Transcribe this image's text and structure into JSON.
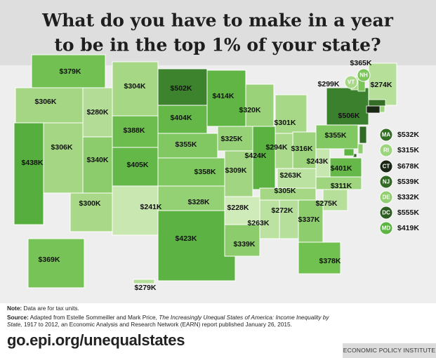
{
  "title_lines": [
    "What do you have to make in a year",
    "to be in the top 1% of your state?"
  ],
  "map": {
    "states": [
      {
        "label": "$379K",
        "value": 379
      },
      {
        "label": "$306K",
        "value": 306
      },
      {
        "label": "$280K",
        "value": 280
      },
      {
        "label": "$304K",
        "value": 304
      },
      {
        "label": "$502K",
        "value": 502
      },
      {
        "label": "$404K",
        "value": 404
      },
      {
        "label": "$388K",
        "value": 388
      },
      {
        "label": "$355K",
        "value": 355
      },
      {
        "label": "$340K",
        "value": 340
      },
      {
        "label": "$405K",
        "value": 405
      },
      {
        "label": "$358K",
        "value": 358
      },
      {
        "label": "$306K",
        "value": 306
      },
      {
        "label": "$438K",
        "value": 438
      },
      {
        "label": "$300K",
        "value": 300
      },
      {
        "label": "$241K",
        "value": 241
      },
      {
        "label": "$328K",
        "value": 328
      },
      {
        "label": "$423K",
        "value": 423
      },
      {
        "label": "$414K",
        "value": 414
      },
      {
        "label": "$325K",
        "value": 325
      },
      {
        "label": "$309K",
        "value": 309
      },
      {
        "label": "$228K",
        "value": 228
      },
      {
        "label": "$339K",
        "value": 339
      },
      {
        "label": "$320K",
        "value": 320
      },
      {
        "label": "$424K",
        "value": 424
      },
      {
        "label": "$301K",
        "value": 301
      },
      {
        "label": "$294K",
        "value": 294
      },
      {
        "label": "$316K",
        "value": 316
      },
      {
        "label": "$263K",
        "value": 263
      },
      {
        "label": "$305K",
        "value": 305
      },
      {
        "label": "$263K",
        "value": 263
      },
      {
        "label": "$272K",
        "value": 272
      },
      {
        "label": "$337K",
        "value": 337
      },
      {
        "label": "$378K",
        "value": 378
      },
      {
        "label": "$275K",
        "value": 275
      },
      {
        "label": "$311K",
        "value": 311
      },
      {
        "label": "$401K",
        "value": 401
      },
      {
        "label": "$243K",
        "value": 243
      },
      {
        "label": "$355K",
        "value": 355
      },
      {
        "label": "$506K",
        "value": 506
      },
      {
        "label": "$274K",
        "value": 274
      },
      {
        "label": "$369K",
        "value": 369
      },
      {
        "label": "$279K",
        "value": 279
      }
    ],
    "small_states": [
      {
        "abbr": "VT",
        "label": "$299K",
        "value": 299
      },
      {
        "abbr": "NH",
        "label": "$365K",
        "value": 365
      },
      {
        "abbr": "MA",
        "label": "$532K",
        "value": 532
      },
      {
        "abbr": "RI",
        "label": "$315K",
        "value": 315
      },
      {
        "abbr": "CT",
        "label": "$678K",
        "value": 678
      },
      {
        "abbr": "NJ",
        "label": "$539K",
        "value": 539
      },
      {
        "abbr": "DE",
        "label": "$332K",
        "value": 332
      },
      {
        "abbr": "DC",
        "label": "$555K",
        "value": 555
      },
      {
        "abbr": "MD",
        "label": "$419K",
        "value": 419
      }
    ]
  },
  "note": {
    "label": "Note:",
    "text": "Data are for tax units."
  },
  "source": {
    "label": "Source:",
    "text_before": "Adapted from Estelle Sommeiller and Mark Price,",
    "title": "The Increasingly Unequal States of America: Income Inequality by State,",
    "text_after": "1917 to 2012, an Economic Analysis and Research Network (EARN) report published January 26, 2015."
  },
  "url": "go.epi.org/unequalstates",
  "publisher": "ECONOMIC POLICY INSTITUTE"
}
